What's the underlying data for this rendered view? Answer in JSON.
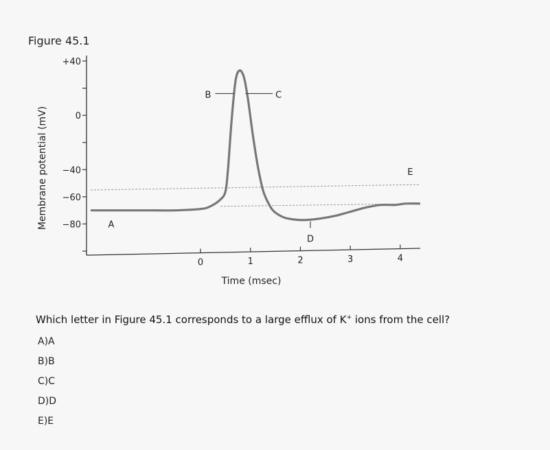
{
  "figure": {
    "title": "Figure 45.1"
  },
  "chart_data": {
    "type": "line",
    "xlabel": "Time (msec)",
    "ylabel": "Membrane potential (mV)",
    "xlim": [
      -2.2,
      4.4
    ],
    "ylim": [
      -103,
      43
    ],
    "x_ticks": [
      0,
      1,
      2,
      3,
      4
    ],
    "x_tick_labels": [
      "0",
      "1",
      "2",
      "3",
      "4"
    ],
    "y_ticks": [
      40,
      20,
      0,
      -20,
      -40,
      -60,
      -80,
      -100
    ],
    "y_tick_labels": [
      "+40",
      "",
      "0",
      "",
      "−40",
      "−60",
      "−80",
      ""
    ],
    "series": [
      {
        "x": [
          -2.2,
          -1.5,
          -1.0,
          -0.5,
          0.0,
          0.2,
          0.4,
          0.5,
          0.55,
          0.62,
          0.7,
          0.78,
          0.87,
          0.95,
          1.05,
          1.15,
          1.25,
          1.35,
          1.45,
          1.6,
          1.75,
          1.95,
          2.15,
          2.4,
          2.7,
          3.0,
          3.3,
          3.6,
          3.9,
          4.1,
          4.4
        ],
        "y": [
          -70,
          -70,
          -70,
          -70,
          -69,
          -67,
          -62,
          -56,
          -40,
          -5,
          25,
          33,
          28,
          12,
          -15,
          -38,
          -55,
          -64,
          -70,
          -74,
          -76,
          -77,
          -77,
          -76,
          -74,
          -71,
          -68,
          -66,
          -66,
          -65,
          -65
        ]
      }
    ],
    "threshold_lines": [
      {
        "x": [
          -2.2,
          4.4
        ],
        "y": [
          -55,
          -51
        ]
      },
      {
        "x": [
          0.4,
          4.4
        ],
        "y": [
          -67,
          -65
        ]
      }
    ],
    "annotations": [
      {
        "text": "A",
        "x": -1.85,
        "y": -80
      },
      {
        "text": "B",
        "x": 0.35,
        "y": 16
      },
      {
        "text": "C",
        "x": 1.5,
        "y": 16
      },
      {
        "text": "D",
        "x": 2.2,
        "y": -88
      },
      {
        "text": "E",
        "x": 4.2,
        "y": -44
      }
    ]
  },
  "question": {
    "text_before": "Which letter in Figure 45.1 corresponds to a large efflux of K",
    "superscript": "+",
    "text_after": " ions from the cell?"
  },
  "choices": [
    {
      "label": "A)A"
    },
    {
      "label": "B)B"
    },
    {
      "label": "C)C"
    },
    {
      "label": "D)D"
    },
    {
      "label": "E)E"
    }
  ]
}
